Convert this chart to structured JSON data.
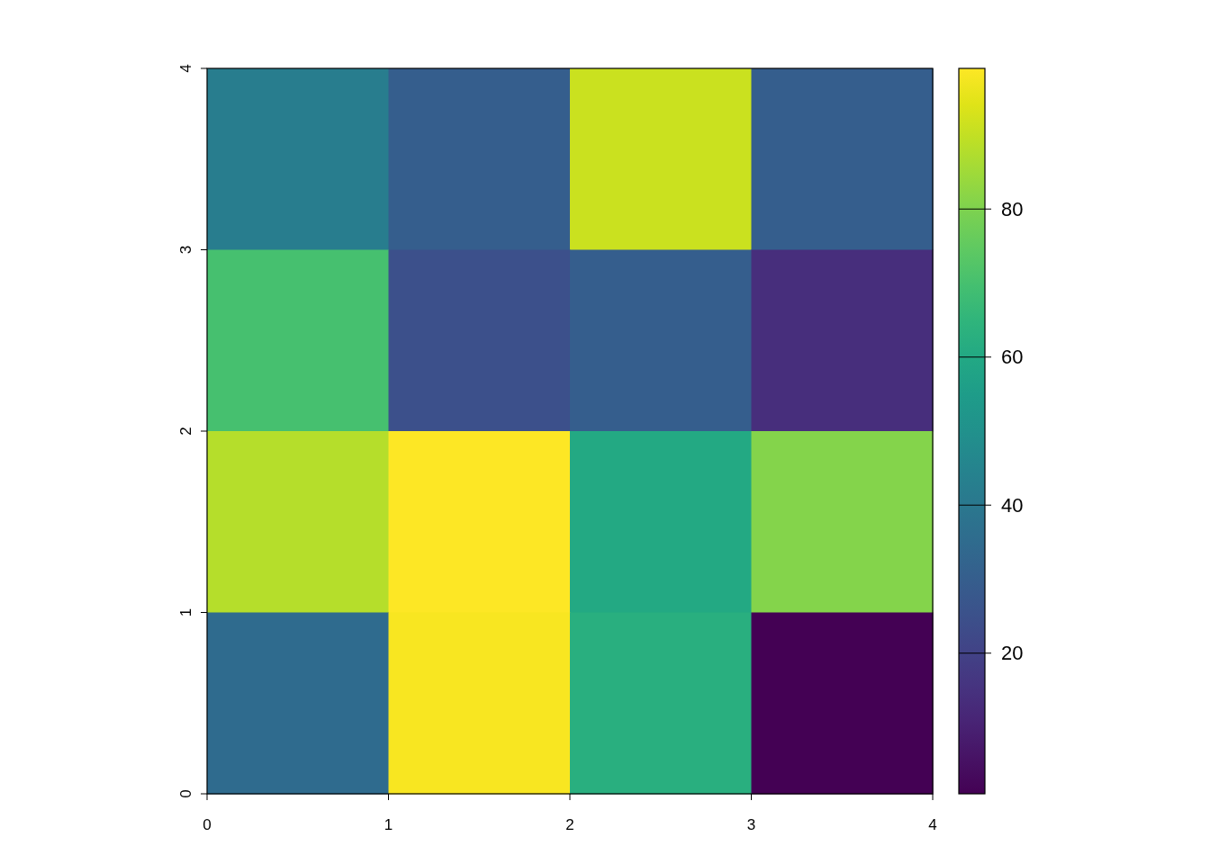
{
  "chart_data": {
    "type": "heatmap",
    "cells": [
      [
        42,
        30,
        91,
        30
      ],
      [
        70,
        25,
        30,
        14
      ],
      [
        88,
        99,
        60,
        81
      ],
      [
        35,
        98,
        63,
        1
      ]
    ],
    "xlim": [
      0,
      4
    ],
    "xticks": [
      0,
      1,
      2,
      3,
      4
    ],
    "ylim": [
      0,
      4
    ],
    "yticks": [
      0,
      1,
      2,
      3,
      4
    ],
    "clim": [
      1,
      99
    ],
    "cticks": [
      20,
      40,
      60,
      80
    ]
  }
}
